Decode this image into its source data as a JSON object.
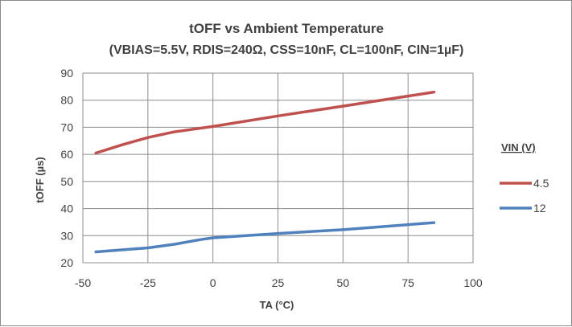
{
  "chart_data": {
    "type": "line",
    "title": "tOFF vs Ambient Temperature",
    "subtitle": "(VBIAS=5.5V, RDIS=240Ω, CSS=10nF, CL=100nF, CIN=1µF)",
    "xlabel": "TA (°C)",
    "ylabel": "tOFF (µs)",
    "xlim": [
      -50,
      100
    ],
    "ylim": [
      20,
      90
    ],
    "x_ticks": [
      -50,
      -25,
      0,
      25,
      50,
      75,
      100
    ],
    "y_ticks": [
      20,
      30,
      40,
      50,
      60,
      70,
      80,
      90
    ],
    "grid": true,
    "legend_title": "VIN (V)",
    "legend_position": "right",
    "series": [
      {
        "name": "4.5",
        "color": "#c0504d",
        "x": [
          -45,
          -35,
          -25,
          -15,
          0,
          25,
          50,
          85
        ],
        "y": [
          60.5,
          63.5,
          66.2,
          68.3,
          70.3,
          74.2,
          77.8,
          83.0
        ]
      },
      {
        "name": "12",
        "color": "#4f81bd",
        "x": [
          -45,
          -25,
          -15,
          -5,
          0,
          25,
          50,
          85
        ],
        "y": [
          24.0,
          25.5,
          26.8,
          28.5,
          29.2,
          30.8,
          32.2,
          34.8
        ]
      }
    ]
  }
}
